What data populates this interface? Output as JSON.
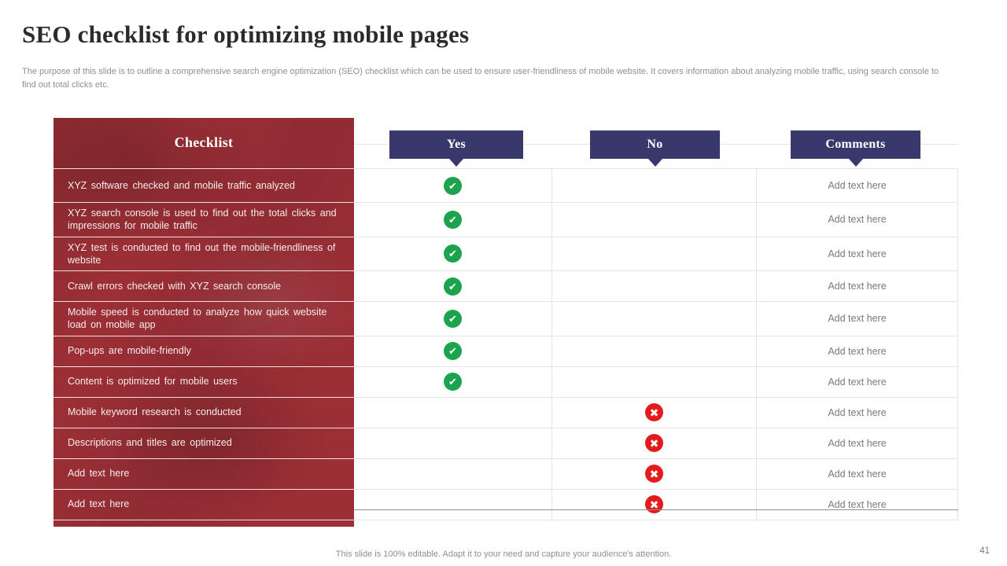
{
  "slide": {
    "title": "SEO checklist for optimizing mobile pages",
    "subtitle": "The purpose of this slide is to outline a comprehensive search engine optimization (SEO) checklist which can be used to ensure user-friendliness of mobile website. It covers information about analyzing mobile traffic, using search console to find out total clicks etc.",
    "footer": "This slide is 100% editable. Adapt it to your need and capture your audience's attention.",
    "page_number": "41"
  },
  "table": {
    "headers": {
      "checklist": "Checklist",
      "yes": "Yes",
      "no": "No",
      "comments": "Comments"
    },
    "icons": {
      "check": "✔",
      "cross": "✖"
    },
    "rows": [
      {
        "label": "XYZ software checked and mobile traffic analyzed",
        "yes": true,
        "no": false,
        "comment": "Add text here"
      },
      {
        "label": "XYZ search console is used to find out the total clicks and impressions for mobile traffic",
        "yes": true,
        "no": false,
        "comment": "Add text here"
      },
      {
        "label": "XYZ test is conducted to find out the mobile-friendliness of website",
        "yes": true,
        "no": false,
        "comment": "Add text here"
      },
      {
        "label": "Crawl errors checked with XYZ search console",
        "yes": true,
        "no": false,
        "comment": "Add text here"
      },
      {
        "label": "Mobile speed is conducted to analyze how quick website load on mobile app",
        "yes": true,
        "no": false,
        "comment": "Add text here"
      },
      {
        "label": "Pop-ups are mobile-friendly",
        "yes": true,
        "no": false,
        "comment": "Add text here"
      },
      {
        "label": "Content is optimized for mobile users",
        "yes": true,
        "no": false,
        "comment": "Add text here"
      },
      {
        "label": "Mobile keyword research is conducted",
        "yes": false,
        "no": true,
        "comment": "Add text here"
      },
      {
        "label": "Descriptions and titles are optimized",
        "yes": false,
        "no": true,
        "comment": "Add text here"
      },
      {
        "label": "Add text here",
        "yes": false,
        "no": true,
        "comment": "Add text here"
      },
      {
        "label": "Add text here",
        "yes": false,
        "no": true,
        "comment": "Add text here"
      }
    ]
  },
  "colors": {
    "title": "#2b2b2b",
    "subtitle_gray": "#8f8f8f",
    "red_panel": "#9c2f36",
    "navy": "#37396c",
    "green": "#1ca34e",
    "cross_red": "#e41b1d",
    "row_border": "#e4e4e4",
    "comment_gray": "#7a7a7a",
    "bottom_border": "#8f8f8f"
  }
}
